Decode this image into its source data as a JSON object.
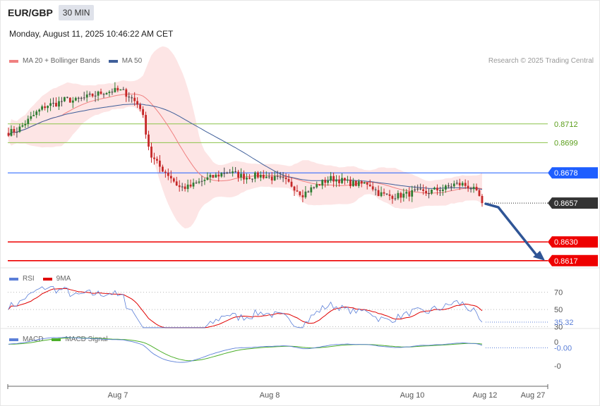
{
  "header": {
    "symbol": "EUR/GBP",
    "timeframe": "30 MIN",
    "datetime": "Monday, August 11, 2025 10:46:22 AM CET",
    "credit": "Research © 2025 Trading Central"
  },
  "colors": {
    "ma20": "#f08080",
    "ma50": "#3f5f9a",
    "band": "#fde0e0",
    "up": "#2e7d32",
    "down": "#c62828",
    "neutral": "#444444",
    "level_green": "#8bc34a",
    "level_blue": "#1e5eff",
    "level_red": "#ee0000",
    "price_tag": "#333333",
    "rsi": "#5b7fd8",
    "rsi_ma": "#e00000",
    "macd": "#5b7fd8",
    "macd_signal": "#4caf2a",
    "arrow": "#2f5596"
  },
  "chart_data": [
    {
      "type": "candlestick",
      "panel": "price",
      "legend": [
        {
          "name": "MA 20 + Bollinger Bands",
          "color": "#f08080"
        },
        {
          "name": "MA 50",
          "color": "#3f5f9a"
        }
      ],
      "x_ticks": [
        "Aug 7",
        "Aug 8",
        "Aug 10",
        "Aug 12",
        "Aug 27"
      ],
      "ylim": [
        0.8612,
        0.8754
      ],
      "levels": [
        {
          "label": "0.8712",
          "value": 0.8712,
          "kind": "resistance"
        },
        {
          "label": "0.8699",
          "value": 0.8699,
          "kind": "resistance"
        },
        {
          "label": "0.8678",
          "value": 0.8678,
          "kind": "pivot"
        },
        {
          "label": "0.8657",
          "value": 0.8657,
          "kind": "last-price"
        },
        {
          "label": "0.8630",
          "value": 0.863,
          "kind": "support"
        },
        {
          "label": "0.8617",
          "value": 0.8617,
          "kind": "support"
        }
      ],
      "forecast": {
        "from": 0.8657,
        "to": 0.8617,
        "direction": "down"
      },
      "close_anchors": [
        0.8706,
        0.8708,
        0.8714,
        0.872,
        0.8725,
        0.8726,
        0.8729,
        0.8728,
        0.873,
        0.8732,
        0.8734,
        0.8735,
        0.8735,
        0.873,
        0.8723,
        0.869,
        0.8682,
        0.8676,
        0.8668,
        0.8668,
        0.8671,
        0.8674,
        0.8676,
        0.8679,
        0.8677,
        0.8675,
        0.8676,
        0.8676,
        0.8674,
        0.8673,
        0.8669,
        0.8663,
        0.8667,
        0.8671,
        0.8674,
        0.8673,
        0.8671,
        0.867,
        0.8671,
        0.8664,
        0.8662,
        0.8662,
        0.8663,
        0.8665,
        0.8664,
        0.8666,
        0.8667,
        0.867,
        0.867,
        0.8667,
        0.8659
      ]
    },
    {
      "type": "line",
      "panel": "rsi",
      "legend": [
        {
          "name": "RSI",
          "color": "#5b7fd8"
        },
        {
          "name": "9MA",
          "color": "#e00000"
        }
      ],
      "ylim": [
        28,
        100
      ],
      "levels": [
        {
          "label": "70",
          "value": 70
        },
        {
          "label": "50",
          "value": 50
        },
        {
          "label": "30",
          "value": 30
        }
      ],
      "last_value_label": "35.32",
      "last_value": 35.32
    },
    {
      "type": "line",
      "panel": "macd",
      "legend": [
        {
          "name": "MACD",
          "color": "#5b7fd8"
        },
        {
          "name": "MACD Signal",
          "color": "#4caf2a"
        }
      ],
      "ylim": [
        -0.0035,
        0.0012
      ],
      "ticks": [
        {
          "label": "0",
          "value": 0.0002
        },
        {
          "label": "-0",
          "value": -0.0018
        }
      ],
      "last_value_label": "-0.00",
      "last_value": -0.0003
    }
  ]
}
